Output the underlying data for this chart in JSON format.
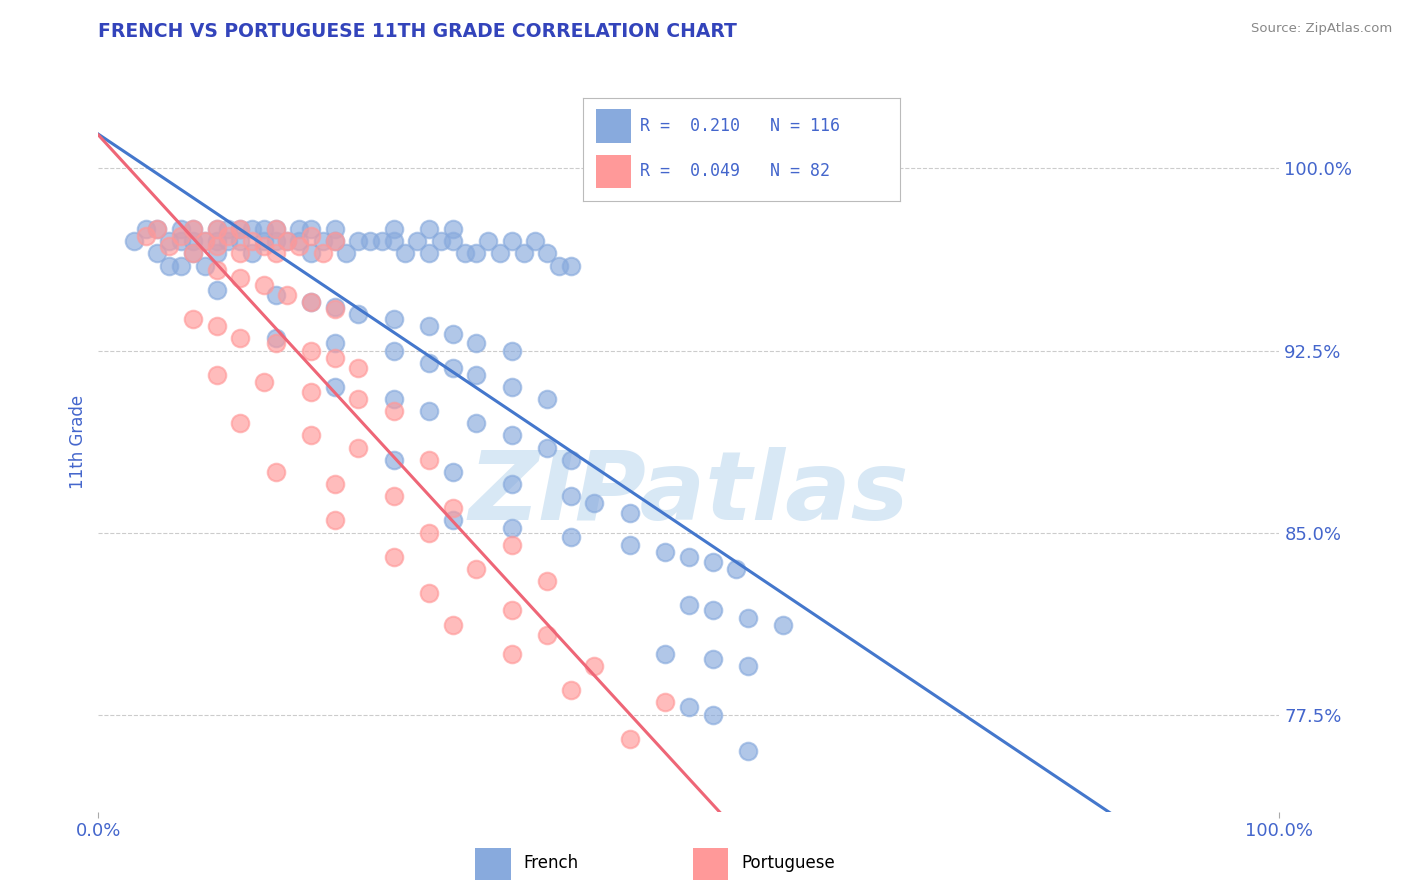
{
  "title": "FRENCH VS PORTUGUESE 11TH GRADE CORRELATION CHART",
  "source": "Source: ZipAtlas.com",
  "ylabel": "11th Grade",
  "yticks": [
    0.775,
    0.85,
    0.925,
    1.0
  ],
  "ytick_labels": [
    "77.5%",
    "85.0%",
    "92.5%",
    "100.0%"
  ],
  "xtick_labels": [
    "0.0%",
    "100.0%"
  ],
  "xlim": [
    0.0,
    1.0
  ],
  "ylim": [
    0.735,
    1.04
  ],
  "french_R": 0.21,
  "french_N": 116,
  "portuguese_R": 0.049,
  "portuguese_N": 82,
  "french_color": "#88AADD",
  "portuguese_color": "#FF9999",
  "french_line_color": "#4477CC",
  "portuguese_line_color": "#EE6677",
  "title_color": "#3344BB",
  "tick_color": "#4466CC",
  "watermark_color": "#D8E8F5",
  "grid_color": "#CCCCCC",
  "french_x": [
    0.03,
    0.04,
    0.05,
    0.05,
    0.06,
    0.06,
    0.07,
    0.07,
    0.07,
    0.08,
    0.08,
    0.08,
    0.09,
    0.09,
    0.1,
    0.1,
    0.1,
    0.11,
    0.11,
    0.12,
    0.12,
    0.13,
    0.13,
    0.14,
    0.14,
    0.15,
    0.15,
    0.16,
    0.17,
    0.17,
    0.18,
    0.18,
    0.19,
    0.2,
    0.2,
    0.21,
    0.22,
    0.23,
    0.24,
    0.25,
    0.25,
    0.26,
    0.27,
    0.28,
    0.28,
    0.29,
    0.3,
    0.3,
    0.31,
    0.32,
    0.33,
    0.34,
    0.35,
    0.36,
    0.37,
    0.38,
    0.39,
    0.4,
    0.1,
    0.15,
    0.18,
    0.2,
    0.22,
    0.25,
    0.28,
    0.3,
    0.32,
    0.35,
    0.15,
    0.2,
    0.25,
    0.28,
    0.3,
    0.32,
    0.35,
    0.38,
    0.2,
    0.25,
    0.28,
    0.32,
    0.35,
    0.38,
    0.4,
    0.25,
    0.3,
    0.35,
    0.4,
    0.42,
    0.45,
    0.3,
    0.35,
    0.4,
    0.45,
    0.48,
    0.5,
    0.52,
    0.54,
    0.5,
    0.52,
    0.55,
    0.58,
    0.48,
    0.52,
    0.55,
    0.5,
    0.52,
    0.55
  ],
  "french_y": [
    0.97,
    0.975,
    0.975,
    0.965,
    0.97,
    0.96,
    0.975,
    0.97,
    0.96,
    0.975,
    0.97,
    0.965,
    0.97,
    0.96,
    0.975,
    0.97,
    0.965,
    0.975,
    0.97,
    0.975,
    0.97,
    0.975,
    0.965,
    0.975,
    0.97,
    0.975,
    0.97,
    0.97,
    0.975,
    0.97,
    0.975,
    0.965,
    0.97,
    0.975,
    0.97,
    0.965,
    0.97,
    0.97,
    0.97,
    0.975,
    0.97,
    0.965,
    0.97,
    0.975,
    0.965,
    0.97,
    0.975,
    0.97,
    0.965,
    0.965,
    0.97,
    0.965,
    0.97,
    0.965,
    0.97,
    0.965,
    0.96,
    0.96,
    0.95,
    0.948,
    0.945,
    0.943,
    0.94,
    0.938,
    0.935,
    0.932,
    0.928,
    0.925,
    0.93,
    0.928,
    0.925,
    0.92,
    0.918,
    0.915,
    0.91,
    0.905,
    0.91,
    0.905,
    0.9,
    0.895,
    0.89,
    0.885,
    0.88,
    0.88,
    0.875,
    0.87,
    0.865,
    0.862,
    0.858,
    0.855,
    0.852,
    0.848,
    0.845,
    0.842,
    0.84,
    0.838,
    0.835,
    0.82,
    0.818,
    0.815,
    0.812,
    0.8,
    0.798,
    0.795,
    0.778,
    0.775,
    0.76
  ],
  "portuguese_x": [
    0.04,
    0.05,
    0.06,
    0.07,
    0.08,
    0.08,
    0.09,
    0.1,
    0.1,
    0.11,
    0.12,
    0.12,
    0.13,
    0.14,
    0.15,
    0.15,
    0.16,
    0.17,
    0.18,
    0.19,
    0.2,
    0.1,
    0.12,
    0.14,
    0.16,
    0.18,
    0.2,
    0.08,
    0.1,
    0.12,
    0.15,
    0.18,
    0.2,
    0.22,
    0.1,
    0.14,
    0.18,
    0.22,
    0.25,
    0.12,
    0.18,
    0.22,
    0.28,
    0.15,
    0.2,
    0.25,
    0.3,
    0.2,
    0.28,
    0.35,
    0.25,
    0.32,
    0.38,
    0.28,
    0.35,
    0.3,
    0.38,
    0.35,
    0.42,
    0.4,
    0.48,
    0.45
  ],
  "portuguese_y": [
    0.972,
    0.975,
    0.968,
    0.972,
    0.975,
    0.965,
    0.97,
    0.975,
    0.968,
    0.972,
    0.975,
    0.965,
    0.97,
    0.968,
    0.975,
    0.965,
    0.97,
    0.968,
    0.972,
    0.965,
    0.97,
    0.958,
    0.955,
    0.952,
    0.948,
    0.945,
    0.942,
    0.938,
    0.935,
    0.93,
    0.928,
    0.925,
    0.922,
    0.918,
    0.915,
    0.912,
    0.908,
    0.905,
    0.9,
    0.895,
    0.89,
    0.885,
    0.88,
    0.875,
    0.87,
    0.865,
    0.86,
    0.855,
    0.85,
    0.845,
    0.84,
    0.835,
    0.83,
    0.825,
    0.818,
    0.812,
    0.808,
    0.8,
    0.795,
    0.785,
    0.78,
    0.765
  ]
}
